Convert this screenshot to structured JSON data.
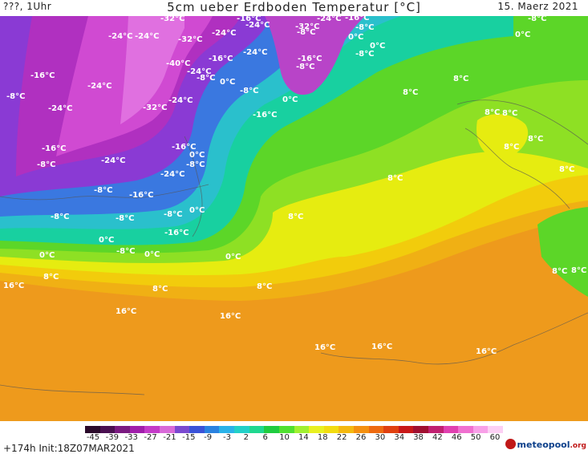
{
  "header": {
    "left": "???, 1Uhr",
    "title": "5cm ueber Erdboden Temperatur [°C]",
    "date": "15. Maerz 2021"
  },
  "map": {
    "isotherm_labels": [
      "-32°C",
      "-16°C",
      "-24°C",
      "-8°C",
      "-24°C",
      "-24°C",
      "-32°C",
      "-24°C",
      "-32°C",
      "-24°C",
      "-16°C",
      "-8°C",
      "0°C",
      "0°C",
      "-40°C",
      "-16°C",
      "-8°C",
      "-16°C",
      "-8°C",
      "-24°C",
      "-8°C",
      "0°C",
      "-16°C",
      "-24°C",
      "-8°C",
      "-8°C",
      "-24°C",
      "-8°C",
      "0°C",
      "-24°C",
      "-32°C",
      "-24°C",
      "-16°C",
      "8°C",
      "0°C",
      "-16°C",
      "8°C",
      "8°C",
      "8°C",
      "-16°C",
      "-8°C",
      "-24°C",
      "-24°C",
      "0°C",
      "-8°C",
      "8°C",
      "8°C",
      "-8°C",
      "-16°C",
      "-8°C",
      "-8°C",
      "-8°C",
      "-16°C",
      "-8°C",
      "0°C",
      "8°C",
      "0°C",
      "0°C",
      "0°C",
      "0°C",
      "8°C",
      "16°C",
      "8°C",
      "8°C",
      "8°C",
      "16°C",
      "16°C",
      "16°C",
      "16°C",
      "16°C",
      "8°C",
      "8°C",
      "8°C"
    ]
  },
  "legend": {
    "ticks": [
      "-45",
      "-39",
      "-33",
      "-27",
      "-21",
      "-15",
      "-9",
      "-3",
      "2",
      "6",
      "10",
      "14",
      "18",
      "22",
      "26",
      "30",
      "34",
      "38",
      "42",
      "46",
      "50",
      "60"
    ],
    "colors": [
      "#2a0a2a",
      "#4a1050",
      "#7a1a80",
      "#a01eaa",
      "#c43ac8",
      "#d86ad8",
      "#7a4ad0",
      "#3a52d8",
      "#2a82e0",
      "#2ab2e8",
      "#22d0c8",
      "#20d890",
      "#20cc40",
      "#50e030",
      "#a0f030",
      "#e8f020",
      "#f2dc10",
      "#f4b810",
      "#f49010",
      "#ee6a10",
      "#e04010",
      "#c81818",
      "#a01030",
      "#c02070",
      "#e040b0",
      "#f070d0",
      "#f8a0e8",
      "#fcd0f4"
    ]
  },
  "footer": {
    "init": "+174h Init:18Z07MAR2021",
    "logo_main": "meteopool",
    "logo_tld": ".org"
  },
  "colors": {
    "ocean_warm": "#ee9a1c",
    "ocean_mid": "#f2c40c",
    "mid": "#e6ec10",
    "green": "#6ad820",
    "teal": "#18d4a0",
    "cyan": "#28c8c8",
    "blue": "#4a7ae0",
    "purple": "#b030c0",
    "magenta": "#d050d8"
  }
}
